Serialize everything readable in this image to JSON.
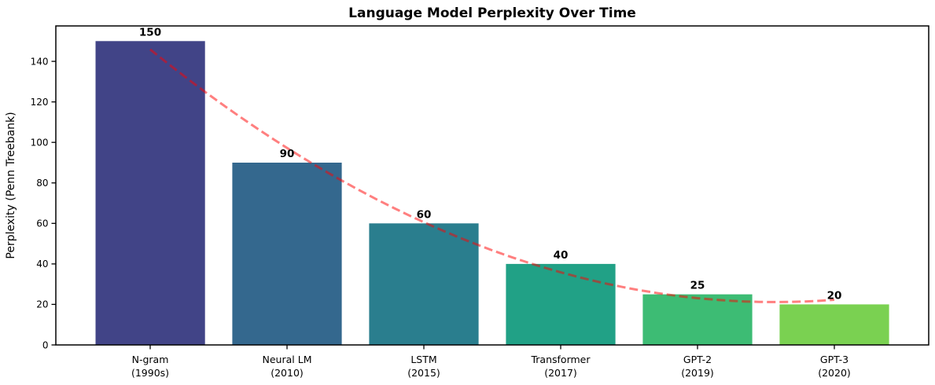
{
  "chart_data": {
    "type": "bar",
    "title": "Language Model Perplexity Over Time",
    "xlabel": "",
    "ylabel": "Perplexity (Penn Treebank)",
    "categories": [
      {
        "model": "N-gram",
        "year": "(1990s)"
      },
      {
        "model": "Neural LM",
        "year": "(2010)"
      },
      {
        "model": "LSTM",
        "year": "(2015)"
      },
      {
        "model": "Transformer",
        "year": "(2017)"
      },
      {
        "model": "GPT-2",
        "year": "(2019)"
      },
      {
        "model": "GPT-3",
        "year": "(2020)"
      }
    ],
    "values": [
      150,
      90,
      60,
      40,
      25,
      20
    ],
    "value_labels": [
      "150",
      "90",
      "60",
      "40",
      "25",
      "20"
    ],
    "bar_colors": [
      "#414487",
      "#34688e",
      "#2a7e8e",
      "#21a186",
      "#3dbc74",
      "#7ad151"
    ],
    "yticks": [
      0,
      20,
      40,
      60,
      80,
      100,
      120,
      140
    ],
    "ylim": [
      0,
      157.5
    ],
    "grid": false,
    "legend": null,
    "plot_background": "#ffffff",
    "spine_color": "#000000",
    "trend_line": {
      "style": "dashed",
      "color": "#ff0000",
      "opacity": 0.5,
      "fit": "quadratic",
      "coefficients": [
        5.98,
        -54.62,
        145.9
      ],
      "x_range": [
        0,
        5
      ],
      "points_at_bar_centers": [
        145.9,
        97.3,
        60.6,
        35.9,
        23.0,
        22.1
      ]
    }
  }
}
